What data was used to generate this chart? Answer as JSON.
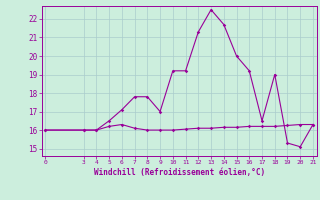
{
  "xlabel": "Windchill (Refroidissement éolien,°C)",
  "background_color": "#cceedd",
  "grid_color": "#aacccc",
  "line_color": "#990099",
  "x_ticks": [
    0,
    3,
    4,
    5,
    6,
    7,
    8,
    9,
    10,
    11,
    12,
    13,
    14,
    15,
    16,
    17,
    18,
    19,
    20,
    21
  ],
  "ylim": [
    14.6,
    22.7
  ],
  "xlim": [
    -0.3,
    21.3
  ],
  "yticks": [
    15,
    16,
    17,
    18,
    19,
    20,
    21,
    22
  ],
  "series1_x": [
    0,
    3,
    4,
    5,
    6,
    7,
    8,
    9,
    10,
    11,
    12,
    13,
    14,
    15,
    16,
    17,
    18,
    19,
    20,
    21
  ],
  "series1_y": [
    16.0,
    16.0,
    16.0,
    16.2,
    16.3,
    16.1,
    16.0,
    16.0,
    16.0,
    16.05,
    16.1,
    16.1,
    16.15,
    16.15,
    16.2,
    16.2,
    16.2,
    16.25,
    16.3,
    16.3
  ],
  "series2_x": [
    0,
    3,
    4,
    5,
    6,
    7,
    8,
    9,
    10,
    11,
    12,
    13,
    14,
    15,
    16,
    17,
    18,
    19,
    20,
    21
  ],
  "series2_y": [
    16.0,
    16.0,
    16.0,
    16.5,
    17.1,
    17.8,
    17.8,
    17.0,
    19.2,
    19.2,
    21.3,
    22.5,
    21.7,
    20.0,
    19.2,
    16.5,
    19.0,
    15.3,
    15.1,
    16.3
  ]
}
